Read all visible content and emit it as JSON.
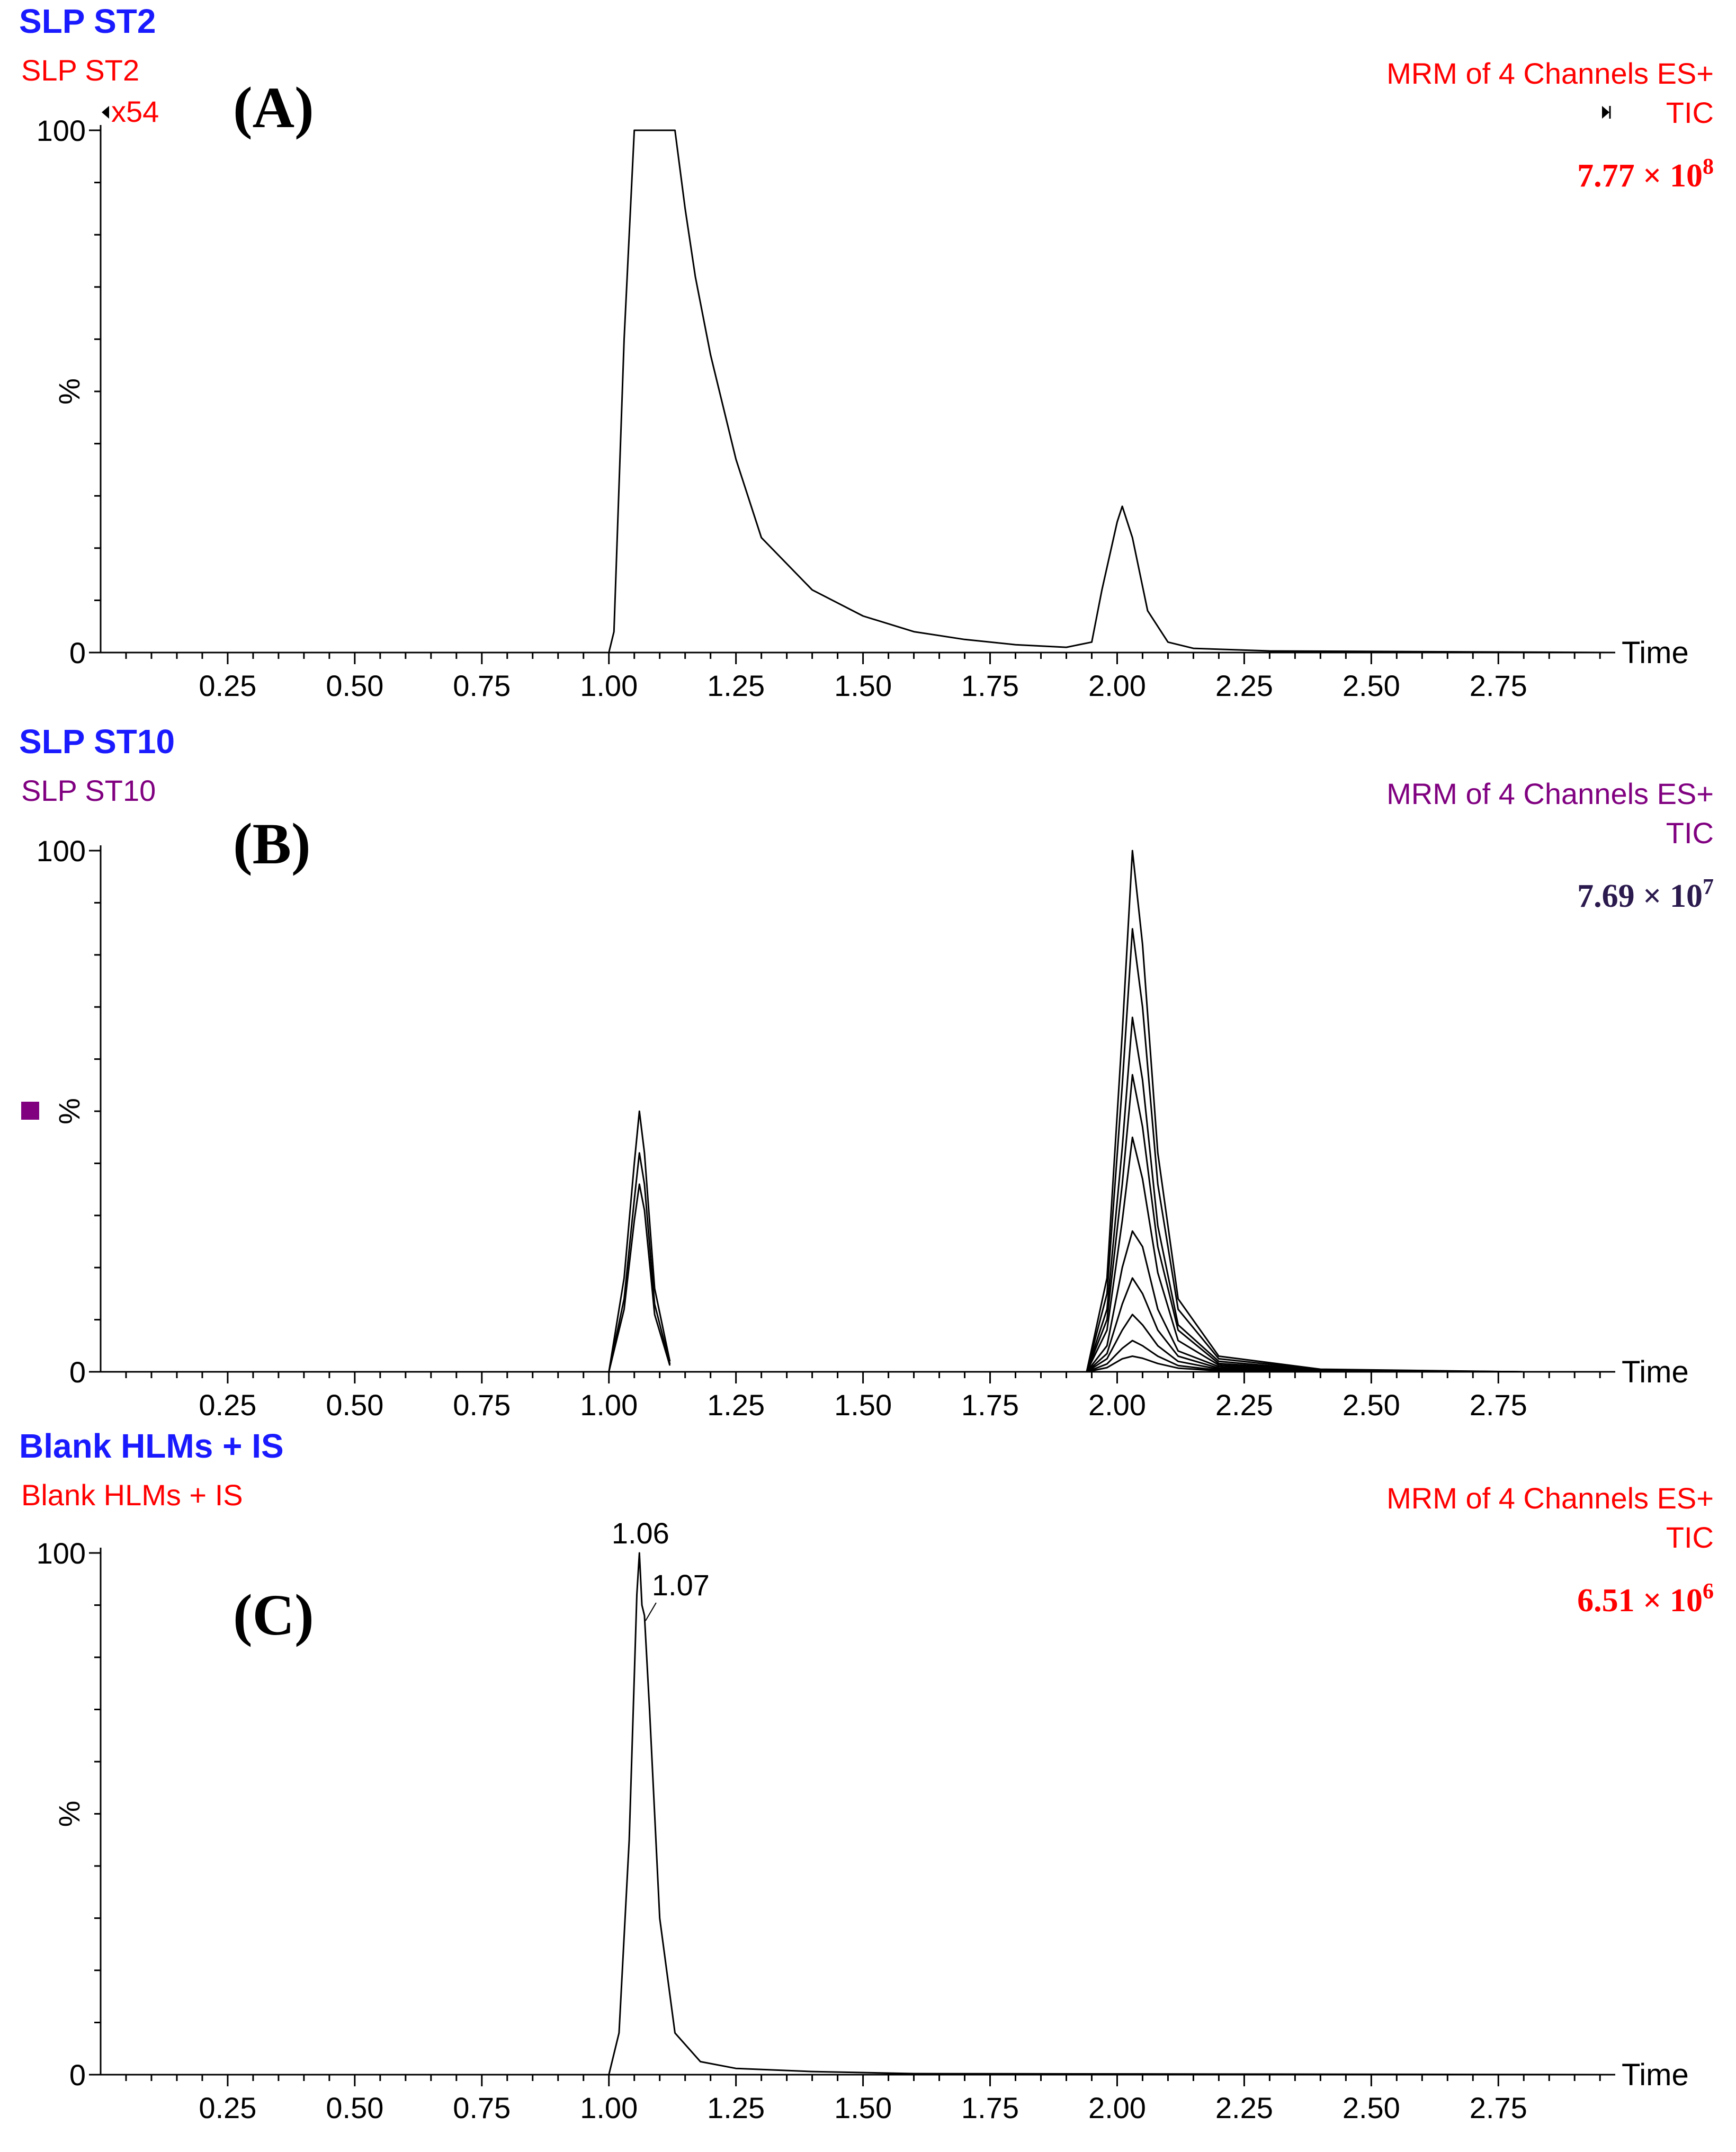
{
  "chart_data": [
    {
      "type": "line",
      "panel_label": "(A)",
      "sample_title": "SLP ST2",
      "sample_subtitle": "SLP ST2",
      "scale_factor": "x54",
      "acquisition": "MRM of 4 Channels ES+",
      "trace": "TIC",
      "intensity_text": "7.77 × 10",
      "intensity_exp": "8",
      "xlabel": "Time",
      "ylabel": "%",
      "xlim": [
        0.0,
        2.98
      ],
      "ylim": [
        0,
        100
      ],
      "x_ticks": [
        "0.25",
        "0.50",
        "0.75",
        "1.00",
        "1.25",
        "1.50",
        "1.75",
        "2.00",
        "2.25",
        "2.50",
        "2.75"
      ],
      "y_ticks": [
        "0",
        "100"
      ],
      "series": [
        {
          "x": [
            0.0,
            1.0,
            1.01,
            1.03,
            1.05,
            1.1,
            1.13,
            1.15,
            1.17,
            1.2,
            1.25,
            1.3,
            1.4,
            1.5,
            1.6,
            1.7,
            1.8,
            1.9,
            1.95,
            1.97,
            2.0,
            2.01,
            2.03,
            2.06,
            2.1,
            2.15,
            2.3,
            2.98
          ],
          "y": [
            0,
            0,
            4,
            60,
            100,
            100,
            100,
            85,
            72,
            57,
            37,
            22,
            12,
            7,
            4,
            2.5,
            1.5,
            1,
            2,
            12,
            25,
            28,
            22,
            8,
            2,
            0.8,
            0.3,
            0
          ]
        }
      ],
      "colors": {
        "title": "#1a1aff",
        "subtitle": "#ff0000",
        "intensity": "#ff0000"
      }
    },
    {
      "type": "line",
      "panel_label": "(B)",
      "sample_title": "SLP ST10",
      "sample_subtitle": "SLP ST10",
      "acquisition": "MRM of 4 Channels ES+",
      "trace": "TIC",
      "intensity_text": "7.69 × 10",
      "intensity_exp": "7",
      "xlabel": "Time",
      "ylabel": "%",
      "xlim": [
        0.0,
        2.98
      ],
      "ylim": [
        0,
        100
      ],
      "x_ticks": [
        "0.25",
        "0.50",
        "0.75",
        "1.00",
        "1.25",
        "1.50",
        "1.75",
        "2.00",
        "2.25",
        "2.50",
        "2.75"
      ],
      "y_ticks": [
        "0",
        "100"
      ],
      "series": [
        {
          "x": [
            1.0,
            1.03,
            1.05,
            1.06,
            1.07,
            1.09,
            1.12
          ],
          "y": [
            0,
            18,
            40,
            50,
            42,
            16,
            2
          ]
        },
        {
          "x": [
            1.0,
            1.03,
            1.05,
            1.06,
            1.07,
            1.09,
            1.12
          ],
          "y": [
            0,
            14,
            33,
            42,
            36,
            13,
            1.5
          ]
        },
        {
          "x": [
            1.0,
            1.03,
            1.05,
            1.06,
            1.07,
            1.09,
            1.12
          ],
          "y": [
            0,
            12,
            29,
            36,
            31,
            11,
            1.2
          ]
        },
        {
          "x": [
            1.94,
            1.98,
            2.01,
            2.03,
            2.05,
            2.08,
            2.12,
            2.2,
            2.4,
            2.8
          ],
          "y": [
            0,
            18,
            65,
            100,
            82,
            42,
            14,
            3,
            0.5,
            0
          ]
        },
        {
          "x": [
            1.94,
            1.98,
            2.01,
            2.03,
            2.05,
            2.08,
            2.12,
            2.2,
            2.4,
            2.8
          ],
          "y": [
            0,
            15,
            55,
            85,
            70,
            36,
            12,
            2.5,
            0.4,
            0
          ]
        },
        {
          "x": [
            1.94,
            1.98,
            2.01,
            2.03,
            2.05,
            2.08,
            2.12,
            2.2,
            2.4,
            2.8
          ],
          "y": [
            0,
            12,
            43,
            68,
            56,
            28,
            9,
            2,
            0.3,
            0
          ]
        },
        {
          "x": [
            1.94,
            1.98,
            2.01,
            2.03,
            2.05,
            2.08,
            2.12,
            2.2,
            2.4,
            2.8
          ],
          "y": [
            0,
            10,
            36,
            57,
            47,
            24,
            8,
            1.6,
            0.3,
            0
          ]
        },
        {
          "x": [
            1.94,
            1.98,
            2.01,
            2.03,
            2.05,
            2.08,
            2.12,
            2.2,
            2.4,
            2.8
          ],
          "y": [
            0,
            8,
            29,
            45,
            37,
            19,
            6,
            1.3,
            0.2,
            0
          ]
        },
        {
          "x": [
            1.94,
            1.98,
            2.01,
            2.03,
            2.05,
            2.08,
            2.12,
            2.2,
            2.4,
            2.8
          ],
          "y": [
            0,
            5,
            20,
            27,
            24,
            12,
            4,
            1,
            0.2,
            0
          ]
        },
        {
          "x": [
            1.94,
            1.98,
            2.01,
            2.03,
            2.05,
            2.08,
            2.12,
            2.2,
            2.4,
            2.8
          ],
          "y": [
            0,
            3.5,
            13,
            18,
            15,
            8,
            3,
            0.7,
            0.1,
            0
          ]
        },
        {
          "x": [
            1.94,
            1.98,
            2.01,
            2.03,
            2.05,
            2.08,
            2.12,
            2.2,
            2.4,
            2.8
          ],
          "y": [
            0,
            2.5,
            8,
            11,
            9,
            5,
            2,
            0.5,
            0.1,
            0
          ]
        },
        {
          "x": [
            1.94,
            1.98,
            2.01,
            2.03,
            2.05,
            2.08,
            2.12,
            2.2,
            2.4,
            2.8
          ],
          "y": [
            0,
            1.5,
            4.5,
            6,
            5,
            3,
            1.2,
            0.3,
            0.1,
            0
          ]
        },
        {
          "x": [
            1.94,
            1.98,
            2.01,
            2.03,
            2.05,
            2.08,
            2.12,
            2.2,
            2.4,
            2.8
          ],
          "y": [
            0,
            0.8,
            2.5,
            3,
            2.6,
            1.6,
            0.7,
            0.2,
            0.05,
            0
          ]
        }
      ],
      "colors": {
        "title": "#1a1aff",
        "subtitle": "#800080",
        "intensity": "#2b1a4d",
        "marker": "#800080"
      }
    },
    {
      "type": "line",
      "panel_label": "(C)",
      "sample_title": "Blank HLMs +  IS",
      "sample_subtitle": "Blank HLMs +  IS",
      "acquisition": "MRM of 4 Channels ES+",
      "trace": "TIC",
      "intensity_text": "6.51 × 10",
      "intensity_exp": "6",
      "xlabel": "Time",
      "ylabel": "%",
      "xlim": [
        0.0,
        2.98
      ],
      "ylim": [
        0,
        100
      ],
      "x_ticks": [
        "0.25",
        "0.50",
        "0.75",
        "1.00",
        "1.25",
        "1.50",
        "1.75",
        "2.00",
        "2.25",
        "2.50",
        "2.75"
      ],
      "y_ticks": [
        "0",
        "100"
      ],
      "peak_labels": [
        {
          "text": "1.06",
          "x": 1.06,
          "y": 100
        },
        {
          "text": "1.07",
          "x": 1.07,
          "y": 87
        }
      ],
      "series": [
        {
          "x": [
            0.0,
            1.0,
            1.02,
            1.04,
            1.055,
            1.06,
            1.065,
            1.07,
            1.08,
            1.1,
            1.13,
            1.18,
            1.25,
            1.4,
            1.6,
            2.98
          ],
          "y": [
            0,
            0,
            8,
            45,
            92,
            100,
            90,
            88,
            70,
            30,
            8,
            2.5,
            1.2,
            0.6,
            0.2,
            0
          ]
        }
      ],
      "colors": {
        "title": "#1a1aff",
        "subtitle": "#ff0000",
        "intensity": "#ff0000"
      }
    }
  ]
}
